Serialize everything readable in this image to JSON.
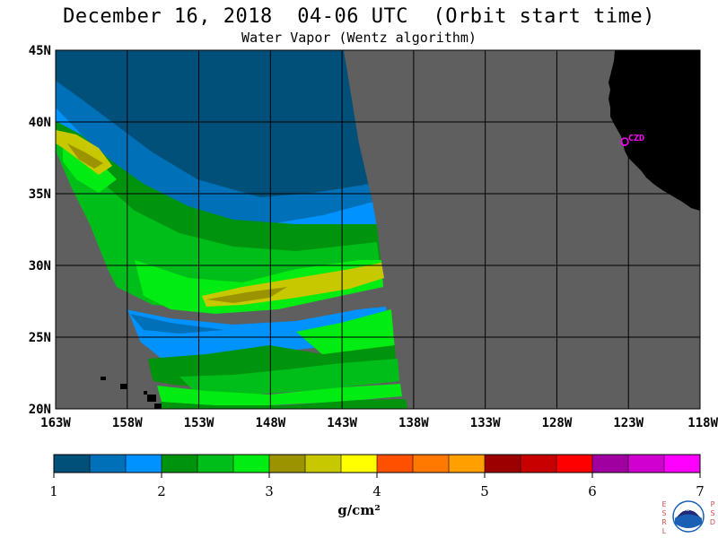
{
  "title": "December 16, 2018  04-06 UTC  (Orbit start time)",
  "subtitle": "Water Vapor (Wentz algorithm)",
  "map": {
    "lat_range": [
      20,
      45
    ],
    "lon_range_deg_west": [
      163,
      118
    ],
    "lat_ticks": [
      "20N",
      "25N",
      "30N",
      "35N",
      "40N",
      "45N"
    ],
    "lon_ticks": [
      "163W",
      "158W",
      "153W",
      "148W",
      "143W",
      "138W",
      "133W",
      "128W",
      "123W",
      "118W"
    ],
    "station_label": "CZD",
    "colors": {
      "no_data": "#5f5f5f",
      "land": "#000000",
      "grid": "#000000",
      "station": "#ff00ff"
    }
  },
  "colorbar": {
    "tick_labels": [
      "1",
      "2",
      "3",
      "4",
      "5",
      "6",
      "7"
    ],
    "unit_label": "g/cm²",
    "colors": [
      "#00507a",
      "#0070b8",
      "#0092ff",
      "#00930d",
      "#00be1a",
      "#00ec12",
      "#9b9300",
      "#c8c800",
      "#ffff00",
      "#ff5000",
      "#ff7800",
      "#ffa000",
      "#9c0000",
      "#c80000",
      "#ff0000",
      "#a000a0",
      "#d000d0",
      "#ff00ff"
    ]
  },
  "logo": {
    "left_letters": [
      "E",
      "S",
      "R",
      "L"
    ],
    "right_letters": [
      "P",
      "S",
      "D"
    ],
    "emblem_text": "NOAA"
  }
}
